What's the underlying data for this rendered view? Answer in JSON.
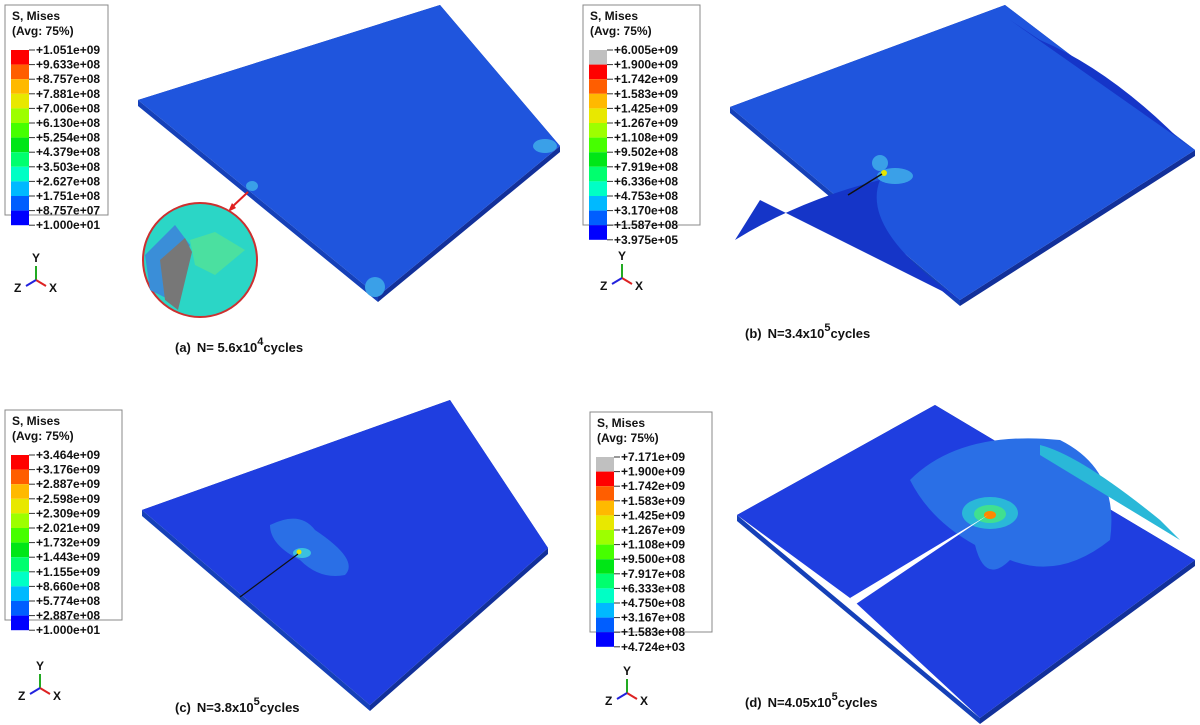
{
  "legend_title": "S, Mises",
  "legend_subtitle": "(Avg: 75%)",
  "triad": {
    "y": "Y",
    "z": "Z",
    "x": "X"
  },
  "panels": [
    {
      "caption": {
        "tag": "(a)",
        "text": "N= 5.6x10",
        "exponent": "4",
        "unit": "cycles"
      },
      "labels": [
        "+1.051e+09",
        "+9.633e+08",
        "+8.757e+08",
        "+7.881e+08",
        "+7.006e+08",
        "+6.130e+08",
        "+5.254e+08",
        "+4.379e+08",
        "+3.503e+08",
        "+2.627e+08",
        "+1.751e+08",
        "+8.757e+07",
        "+1.000e+01"
      ]
    },
    {
      "caption": {
        "tag": "(b)",
        "text": "N=3.4x10",
        "exponent": "5",
        "unit": "cycles"
      },
      "labels": [
        "+6.005e+09",
        "+1.900e+09",
        "+1.742e+09",
        "+1.583e+09",
        "+1.425e+09",
        "+1.267e+09",
        "+1.108e+09",
        "+9.502e+08",
        "+7.919e+08",
        "+6.336e+08",
        "+4.753e+08",
        "+3.170e+08",
        "+1.587e+08",
        "+3.975e+05"
      ]
    },
    {
      "caption": {
        "tag": "(c)",
        "text": "N=3.8x10",
        "exponent": "5",
        "unit": "cycles"
      },
      "labels": [
        "+3.464e+09",
        "+3.176e+09",
        "+2.887e+09",
        "+2.598e+09",
        "+2.309e+09",
        "+2.021e+09",
        "+1.732e+09",
        "+1.443e+09",
        "+1.155e+09",
        "+8.660e+08",
        "+5.774e+08",
        "+2.887e+08",
        "+1.000e+01"
      ]
    },
    {
      "caption": {
        "tag": "(d)",
        "text": "N=4.05x10",
        "exponent": "5",
        "unit": "cycles"
      },
      "labels": [
        "+7.171e+09",
        "+1.900e+09",
        "+1.742e+09",
        "+1.583e+09",
        "+1.425e+09",
        "+1.267e+09",
        "+1.108e+09",
        "+9.500e+08",
        "+7.917e+08",
        "+6.333e+08",
        "+4.750e+08",
        "+3.167e+08",
        "+1.583e+08",
        "+4.724e+03"
      ]
    }
  ]
}
